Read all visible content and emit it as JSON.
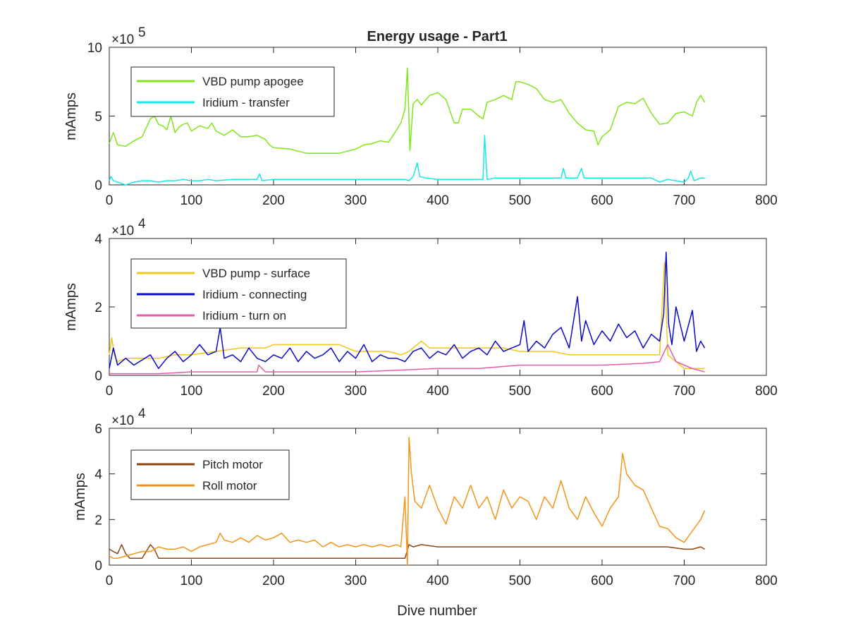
{
  "chart_data": [
    {
      "type": "line",
      "title": "Energy usage - Part1",
      "ylabel": "mAmps",
      "xlabel": "",
      "xlim": [
        0,
        800
      ],
      "ylim": [
        0,
        10
      ],
      "y_multiplier": "×10",
      "y_exponent": "5",
      "xticks": [
        "0",
        "100",
        "200",
        "300",
        "400",
        "500",
        "600",
        "700",
        "800"
      ],
      "yticks": [
        "0",
        "5",
        "10"
      ],
      "legend_position": "top-left",
      "series": [
        {
          "name": "VBD pump apogee",
          "color": "#80e61a",
          "x": [
            0,
            5,
            10,
            20,
            30,
            40,
            50,
            55,
            60,
            65,
            70,
            75,
            80,
            85,
            90,
            95,
            100,
            110,
            120,
            125,
            130,
            140,
            150,
            160,
            170,
            180,
            190,
            195,
            200,
            220,
            240,
            260,
            280,
            300,
            310,
            320,
            330,
            340,
            350,
            355,
            360,
            363,
            366,
            370,
            375,
            380,
            390,
            400,
            410,
            420,
            425,
            430,
            440,
            450,
            455,
            460,
            470,
            480,
            490,
            495,
            500,
            510,
            520,
            530,
            540,
            550,
            560,
            570,
            580,
            590,
            595,
            600,
            610,
            620,
            630,
            640,
            650,
            660,
            670,
            680,
            690,
            700,
            710,
            715,
            720,
            725
          ],
          "values": [
            3.0,
            3.8,
            2.9,
            2.8,
            3.2,
            3.5,
            4.8,
            5.0,
            4.4,
            4.3,
            4.0,
            5.0,
            3.8,
            4.2,
            4.4,
            4.5,
            3.9,
            4.3,
            4.1,
            4.5,
            3.9,
            3.6,
            4.0,
            3.5,
            3.5,
            3.6,
            3.3,
            2.9,
            2.7,
            2.6,
            2.3,
            2.3,
            2.3,
            2.6,
            2.9,
            3.0,
            3.2,
            3.1,
            4.0,
            4.5,
            5.5,
            8.5,
            2.5,
            5.9,
            6.2,
            5.8,
            6.5,
            6.7,
            6.2,
            4.5,
            4.5,
            5.5,
            5.5,
            5.0,
            4.8,
            6.0,
            6.2,
            6.5,
            6.2,
            7.5,
            7.5,
            7.3,
            7.0,
            6.2,
            6.0,
            6.2,
            5.2,
            4.5,
            4.0,
            3.9,
            2.9,
            3.5,
            4.0,
            5.7,
            6.0,
            5.9,
            6.3,
            5.2,
            4.4,
            4.5,
            5.2,
            5.3,
            5.0,
            6.0,
            6.5,
            6.0
          ]
        },
        {
          "name": "Iridium - transfer",
          "color": "#1ae6e6",
          "x": [
            0,
            2,
            5,
            10,
            20,
            30,
            40,
            50,
            60,
            70,
            80,
            90,
            100,
            110,
            120,
            130,
            150,
            170,
            180,
            183,
            186,
            200,
            220,
            240,
            260,
            280,
            300,
            320,
            340,
            360,
            365,
            370,
            375,
            378,
            385,
            400,
            420,
            440,
            450,
            455,
            457,
            460,
            470,
            480,
            490,
            500,
            520,
            540,
            550,
            553,
            556,
            570,
            575,
            578,
            600,
            620,
            640,
            660,
            670,
            680,
            700,
            705,
            708,
            712,
            720,
            725
          ],
          "values": [
            0.3,
            0.6,
            0.3,
            0.2,
            0.0,
            0.2,
            0.3,
            0.3,
            0.2,
            0.3,
            0.3,
            0.4,
            0.3,
            0.3,
            0.4,
            0.3,
            0.4,
            0.4,
            0.4,
            0.8,
            0.3,
            0.4,
            0.4,
            0.4,
            0.4,
            0.4,
            0.4,
            0.4,
            0.4,
            0.4,
            0.3,
            0.6,
            1.6,
            0.6,
            0.5,
            0.4,
            0.4,
            0.4,
            0.4,
            0.4,
            3.6,
            0.4,
            0.5,
            0.5,
            0.5,
            0.5,
            0.5,
            0.5,
            0.5,
            1.2,
            0.5,
            0.5,
            1.2,
            0.5,
            0.5,
            0.5,
            0.5,
            0.5,
            0.2,
            0.4,
            0.2,
            0.5,
            1.0,
            0.3,
            0.5,
            0.5
          ]
        }
      ]
    },
    {
      "type": "line",
      "title": "",
      "ylabel": "mAmps",
      "xlabel": "",
      "xlim": [
        0,
        800
      ],
      "ylim": [
        0,
        4
      ],
      "y_multiplier": "×10",
      "y_exponent": "4",
      "xticks": [
        "0",
        "100",
        "200",
        "300",
        "400",
        "500",
        "600",
        "700",
        "800"
      ],
      "yticks": [
        "0",
        "2",
        "4"
      ],
      "legend_position": "top-left",
      "series": [
        {
          "name": "VBD pump - surface",
          "color": "#f0c818",
          "x": [
            0,
            3,
            6,
            10,
            20,
            40,
            60,
            80,
            100,
            130,
            160,
            180,
            190,
            200,
            220,
            250,
            280,
            300,
            320,
            340,
            355,
            365,
            370,
            380,
            390,
            400,
            420,
            440,
            460,
            480,
            500,
            520,
            540,
            560,
            580,
            600,
            620,
            640,
            660,
            670,
            676,
            680,
            690,
            700,
            710,
            725
          ],
          "values": [
            0.6,
            1.1,
            0.6,
            0.4,
            0.5,
            0.5,
            0.5,
            0.6,
            0.6,
            0.7,
            0.8,
            0.8,
            0.8,
            0.9,
            0.9,
            0.9,
            0.9,
            0.7,
            0.7,
            0.7,
            0.6,
            0.7,
            0.8,
            1.0,
            0.8,
            0.8,
            0.8,
            0.8,
            0.8,
            0.8,
            0.7,
            0.7,
            0.7,
            0.6,
            0.6,
            0.6,
            0.6,
            0.6,
            0.6,
            0.6,
            3.3,
            0.6,
            0.4,
            0.2,
            0.2,
            0.2
          ]
        },
        {
          "name": "Iridium - connecting",
          "color": "#0a0ac8",
          "x": [
            0,
            5,
            10,
            20,
            30,
            50,
            60,
            70,
            80,
            90,
            100,
            110,
            120,
            130,
            135,
            140,
            150,
            160,
            170,
            180,
            190,
            200,
            210,
            220,
            230,
            240,
            250,
            260,
            270,
            280,
            290,
            300,
            310,
            320,
            330,
            340,
            350,
            360,
            370,
            380,
            390,
            400,
            410,
            420,
            430,
            440,
            450,
            460,
            470,
            480,
            490,
            500,
            505,
            510,
            520,
            530,
            540,
            550,
            560,
            570,
            575,
            580,
            590,
            600,
            610,
            620,
            630,
            640,
            650,
            660,
            670,
            675,
            678,
            681,
            685,
            690,
            700,
            710,
            715,
            720,
            725
          ],
          "values": [
            0.2,
            0.8,
            0.3,
            0.5,
            0.3,
            0.6,
            0.2,
            0.5,
            0.7,
            0.4,
            0.6,
            0.9,
            0.6,
            0.7,
            1.4,
            0.5,
            0.6,
            0.4,
            0.8,
            0.5,
            0.4,
            0.6,
            0.5,
            0.8,
            0.4,
            0.7,
            0.5,
            0.6,
            0.8,
            0.4,
            0.7,
            0.5,
            0.9,
            0.4,
            0.6,
            0.5,
            0.5,
            0.4,
            0.7,
            0.8,
            0.5,
            0.7,
            0.6,
            0.9,
            0.5,
            0.7,
            0.8,
            0.6,
            1.0,
            0.7,
            0.8,
            0.9,
            1.6,
            0.7,
            1.0,
            0.8,
            1.2,
            1.4,
            0.8,
            2.3,
            1.0,
            1.6,
            0.9,
            1.3,
            1.0,
            1.5,
            1.1,
            1.3,
            0.8,
            1.2,
            1.0,
            1.8,
            3.6,
            1.5,
            0.9,
            2.0,
            1.0,
            1.9,
            0.7,
            1.0,
            0.8
          ]
        },
        {
          "name": "Iridium - turn on",
          "color": "#e85aa8",
          "x": [
            0,
            20,
            60,
            100,
            150,
            180,
            182,
            190,
            200,
            250,
            300,
            350,
            400,
            450,
            500,
            550,
            600,
            650,
            670,
            680,
            690,
            700,
            710,
            725
          ],
          "values": [
            0.05,
            0.05,
            0.05,
            0.1,
            0.1,
            0.1,
            0.3,
            0.1,
            0.1,
            0.1,
            0.1,
            0.15,
            0.2,
            0.2,
            0.3,
            0.3,
            0.3,
            0.35,
            0.4,
            0.9,
            0.4,
            0.3,
            0.2,
            0.1
          ]
        }
      ]
    },
    {
      "type": "line",
      "title": "",
      "ylabel": "mAmps",
      "xlabel": "Dive number",
      "xlim": [
        0,
        800
      ],
      "ylim": [
        0,
        6
      ],
      "y_multiplier": "×10",
      "y_exponent": "4",
      "xticks": [
        "0",
        "100",
        "200",
        "300",
        "400",
        "500",
        "600",
        "700",
        "800"
      ],
      "yticks": [
        "0",
        "2",
        "4",
        "6"
      ],
      "legend_position": "top-left",
      "series": [
        {
          "name": "Pitch motor",
          "color": "#8b4513",
          "x": [
            0,
            5,
            10,
            15,
            20,
            25,
            30,
            40,
            50,
            55,
            60,
            65,
            70,
            100,
            150,
            200,
            250,
            300,
            340,
            350,
            355,
            360,
            365,
            370,
            380,
            400,
            450,
            500,
            550,
            600,
            620,
            640,
            650,
            660,
            680,
            700,
            710,
            720,
            725
          ],
          "values": [
            0.7,
            0.6,
            0.5,
            0.9,
            0.5,
            0.3,
            0.3,
            0.3,
            0.9,
            0.7,
            0.3,
            0.3,
            0.3,
            0.3,
            0.3,
            0.3,
            0.3,
            0.3,
            0.3,
            0.3,
            0.3,
            0.3,
            0.9,
            0.8,
            0.9,
            0.8,
            0.8,
            0.8,
            0.8,
            0.8,
            0.8,
            0.8,
            0.8,
            0.8,
            0.8,
            0.7,
            0.7,
            0.8,
            0.7
          ]
        },
        {
          "name": "Roll motor",
          "color": "#f29418",
          "x": [
            0,
            5,
            10,
            20,
            30,
            40,
            50,
            60,
            70,
            80,
            90,
            100,
            110,
            120,
            130,
            135,
            140,
            150,
            160,
            170,
            180,
            190,
            200,
            210,
            220,
            230,
            240,
            250,
            260,
            270,
            280,
            290,
            300,
            310,
            320,
            330,
            340,
            350,
            355,
            360,
            363,
            365,
            368,
            372,
            380,
            390,
            400,
            410,
            420,
            430,
            440,
            450,
            460,
            470,
            480,
            490,
            500,
            510,
            520,
            530,
            540,
            550,
            560,
            570,
            580,
            590,
            600,
            610,
            620,
            625,
            630,
            640,
            650,
            660,
            670,
            680,
            690,
            700,
            710,
            720,
            725
          ],
          "values": [
            0.4,
            0.3,
            0.3,
            0.4,
            0.5,
            0.6,
            0.6,
            0.8,
            0.7,
            0.7,
            0.8,
            0.6,
            0.8,
            0.9,
            1.0,
            1.4,
            1.1,
            1.0,
            1.2,
            1.0,
            1.3,
            1.1,
            1.2,
            1.4,
            1.0,
            1.1,
            1.0,
            1.1,
            0.8,
            1.0,
            0.8,
            0.9,
            0.8,
            0.9,
            0.8,
            0.9,
            0.8,
            0.9,
            0.8,
            3.0,
            0.0,
            5.6,
            4.0,
            2.8,
            2.5,
            3.5,
            2.5,
            1.8,
            3.0,
            2.5,
            3.5,
            2.5,
            3.0,
            2.0,
            3.3,
            2.5,
            3.0,
            2.8,
            2.0,
            3.0,
            2.5,
            3.7,
            2.5,
            2.0,
            3.0,
            2.3,
            1.7,
            2.5,
            3.0,
            4.9,
            4.0,
            3.5,
            3.3,
            2.5,
            1.7,
            1.6,
            1.2,
            1.0,
            1.5,
            2.0,
            2.4
          ]
        }
      ]
    }
  ]
}
